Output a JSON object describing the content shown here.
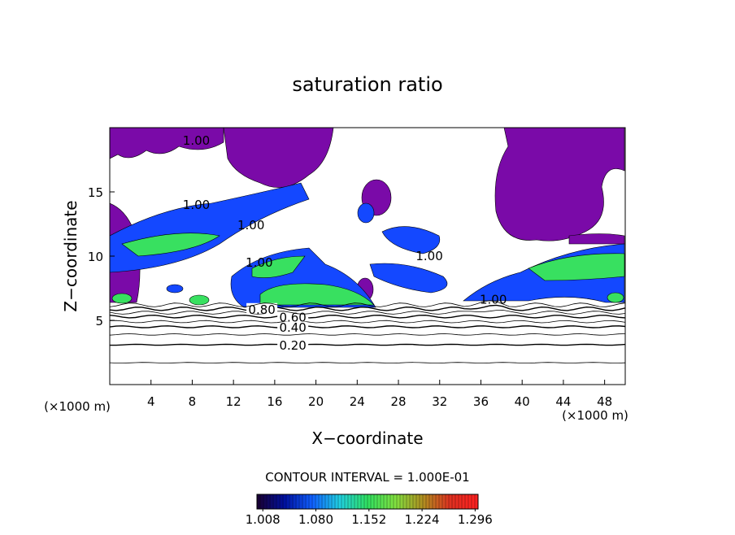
{
  "chart_data": {
    "type": "contour",
    "title": "saturation ratio",
    "xlabel": "X−coordinate",
    "ylabel": "Z−coordinate",
    "xunit": "(×1000 m)",
    "yunit": "(×1000 m)",
    "xlim": [
      0,
      50
    ],
    "xticks": [
      4,
      8,
      12,
      16,
      20,
      24,
      28,
      32,
      36,
      40,
      44,
      48
    ],
    "ylim": [
      0,
      20
    ],
    "yticks": [
      5,
      10,
      15
    ],
    "contours": [
      {
        "level": 0.1,
        "z": 1.7
      },
      {
        "level": 0.2,
        "z": 3.1,
        "label": "0.20",
        "label_x": 17.6
      },
      {
        "level": 0.3,
        "z": 3.9
      },
      {
        "level": 0.4,
        "z": 4.5,
        "label": "0.40",
        "label_x": 17.6
      },
      {
        "level": 0.5,
        "z": 4.9
      },
      {
        "level": 0.6,
        "z": 5.3,
        "label": "0.60",
        "label_x": 17.6
      },
      {
        "level": 0.7,
        "z": 5.6
      },
      {
        "level": 0.8,
        "z": 5.9,
        "label": "0.80",
        "label_x": 14.6
      },
      {
        "level": 0.9,
        "z": 6.2
      }
    ],
    "annotations": [
      {
        "text": "1.00",
        "x": 8.4,
        "z": 19.0
      },
      {
        "text": "1.00",
        "x": 8.4,
        "z": 14.0
      },
      {
        "text": "1.00",
        "x": 13.7,
        "z": 12.4
      },
      {
        "text": "1.00",
        "x": 14.5,
        "z": 9.5
      },
      {
        "text": "1.00",
        "x": 31.0,
        "z": 10.0
      },
      {
        "text": "1.00",
        "x": 37.2,
        "z": 6.6
      }
    ],
    "contour_interval": "CONTOUR INTERVAL = 1.000E-01",
    "colorbar": {
      "clim": [
        1.0,
        1.3
      ],
      "colors": [
        "#1a0030",
        "#0010a0",
        "#1060ff",
        "#20d0e0",
        "#30e060",
        "#80e040",
        "#b09020",
        "#e03020",
        "#ff2020"
      ],
      "ticks": [
        1.008,
        {
          "value": 1.08,
          "label": "1.080"
        },
        1.152,
        1.224,
        1.296
      ]
    }
  }
}
